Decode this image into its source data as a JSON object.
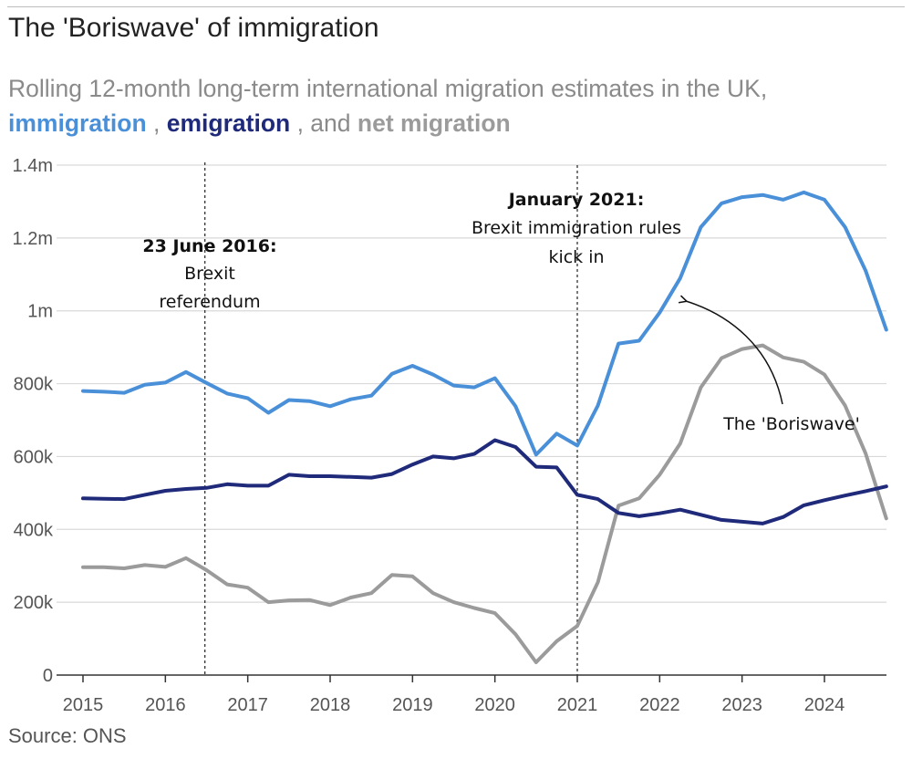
{
  "title": "The 'Boriswave' of immigration",
  "subtitle": {
    "lead": "Rolling 12-month long-term international migration estimates in the UK,",
    "immigration": "immigration",
    "sep1": " , ",
    "emigration": "emigration",
    "sep2": " , and ",
    "net": "net migration"
  },
  "source": "Source: ONS",
  "colors": {
    "immigration": "#4a90d9",
    "emigration": "#1f2a7a",
    "net": "#9b9b9b",
    "grid": "#d9d9d9"
  },
  "chart_data": {
    "type": "line",
    "title": "The 'Boriswave' of immigration",
    "xlabel": "",
    "ylabel": "",
    "xlim": [
      2014.9,
      2024.9
    ],
    "ylim": [
      0,
      1400000
    ],
    "yticks": [
      0,
      200000,
      400000,
      600000,
      800000,
      1000000,
      1200000,
      1400000
    ],
    "ytick_labels": [
      "0",
      "200k",
      "400k",
      "600k",
      "800k",
      "1m",
      "1.2m",
      "1.4m"
    ],
    "xticks": [
      2015,
      2016,
      2017,
      2018,
      2019,
      2020,
      2021,
      2022,
      2023,
      2024
    ],
    "xtick_labels": [
      "2015",
      "2016",
      "2017",
      "2018",
      "2019",
      "2020",
      "2021",
      "2022",
      "2023",
      "2024"
    ],
    "x": [
      2015,
      2015.25,
      2015.5,
      2015.75,
      2016,
      2016.25,
      2016.5,
      2016.75,
      2017,
      2017.25,
      2017.5,
      2017.75,
      2018,
      2018.25,
      2018.5,
      2018.75,
      2019,
      2019.25,
      2019.5,
      2019.75,
      2020,
      2020.25,
      2020.5,
      2020.75,
      2021,
      2021.25,
      2021.5,
      2021.75,
      2022,
      2022.25,
      2022.5,
      2022.75,
      2023,
      2023.25,
      2023.5,
      2023.75,
      2024,
      2024.25,
      2024.5,
      2024.75
    ],
    "series": [
      {
        "name": "immigration",
        "values": [
          780000,
          778000,
          775000,
          797000,
          803000,
          832000,
          802000,
          773000,
          760000,
          720000,
          755000,
          752000,
          738000,
          757000,
          767000,
          827000,
          849000,
          825000,
          795000,
          790000,
          815000,
          738000,
          605000,
          663000,
          630000,
          740000,
          910000,
          918000,
          995000,
          1090000,
          1230000,
          1295000,
          1312000,
          1318000,
          1305000,
          1325000,
          1305000,
          1230000,
          1110000,
          948000
        ]
      },
      {
        "name": "emigration",
        "values": [
          485000,
          484000,
          483000,
          495000,
          506000,
          511000,
          514000,
          524000,
          520000,
          520000,
          550000,
          546000,
          546000,
          544000,
          542000,
          552000,
          578000,
          600000,
          595000,
          607000,
          645000,
          626000,
          572000,
          570000,
          495000,
          483000,
          445000,
          436000,
          444000,
          454000,
          440000,
          426000,
          421000,
          416000,
          434000,
          466000,
          480000,
          493000,
          505000,
          518000
        ]
      },
      {
        "name": "net migration",
        "values": [
          296000,
          296000,
          293000,
          302000,
          297000,
          321000,
          288000,
          249000,
          240000,
          200000,
          205000,
          206000,
          192000,
          213000,
          225000,
          275000,
          271000,
          225000,
          200000,
          184000,
          170000,
          112000,
          35000,
          93000,
          135000,
          255000,
          465000,
          485000,
          550000,
          636000,
          790000,
          870000,
          895000,
          905000,
          872000,
          860000,
          825000,
          740000,
          608000,
          430000
        ]
      }
    ],
    "annotations": {
      "referendum": {
        "x": 2016.48,
        "date": "23 June 2016:",
        "line1": "Brexit",
        "line2": "referendum"
      },
      "brexit_rules": {
        "x": 2021.0,
        "date": "January 2021:",
        "line1": "Brexit immigration rules",
        "line2": "kick in"
      },
      "boriswave": {
        "label": "The 'Boriswave'",
        "arrow_to_x": 2022.25,
        "arrow_to_y": 1090000
      }
    }
  }
}
